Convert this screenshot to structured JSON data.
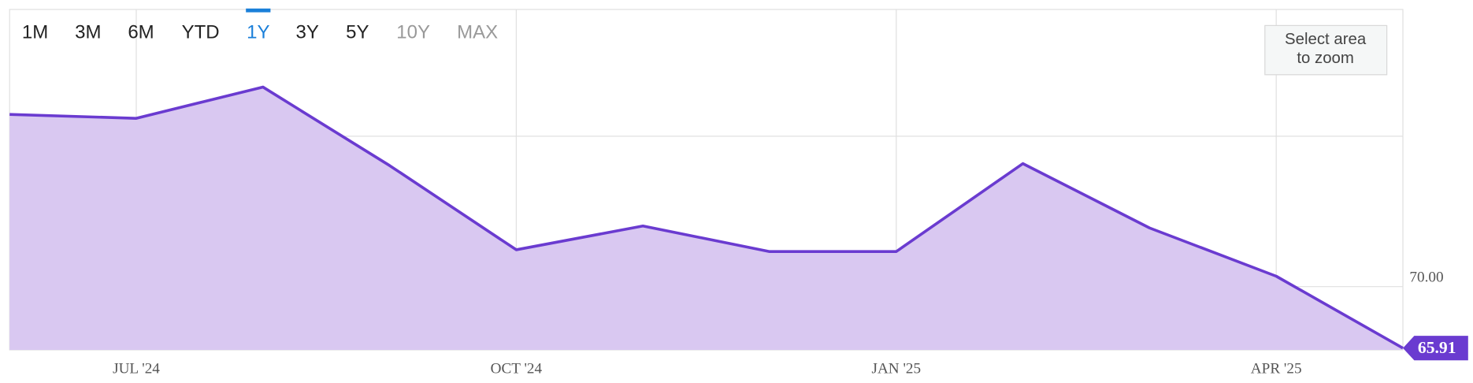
{
  "chart_data": {
    "type": "area",
    "range_buttons": [
      {
        "label": "1M",
        "state": "normal"
      },
      {
        "label": "3M",
        "state": "normal"
      },
      {
        "label": "6M",
        "state": "normal"
      },
      {
        "label": "YTD",
        "state": "normal"
      },
      {
        "label": "1Y",
        "state": "active"
      },
      {
        "label": "3Y",
        "state": "normal"
      },
      {
        "label": "5Y",
        "state": "normal"
      },
      {
        "label": "10Y",
        "state": "disabled"
      },
      {
        "label": "MAX",
        "state": "disabled"
      }
    ],
    "zoom_hint": [
      "Select area",
      "to zoom"
    ],
    "x": [
      "2024-06",
      "2024-07",
      "2024-08",
      "2024-09",
      "2024-10",
      "2024-11",
      "2024-12",
      "2025-01",
      "2025-02",
      "2025-03",
      "2025-04",
      "2025-05"
    ],
    "xlim": [
      "2024-06",
      "2025-05"
    ],
    "xticks": [
      {
        "value": "2024-07",
        "label": "JUL '24"
      },
      {
        "value": "2024-10",
        "label": "OCT '24"
      },
      {
        "value": "2025-01",
        "label": "JAN '25"
      },
      {
        "value": "2025-04",
        "label": "APR '25"
      }
    ],
    "series": [
      {
        "color": "#6a3bd0",
        "fill": "#d9c8f1",
        "values": [
          81.45,
          81.19,
          83.27,
          78.05,
          72.45,
          74.03,
          72.33,
          72.33,
          78.18,
          73.9,
          70.69,
          65.91
        ]
      }
    ],
    "ylim": [
      65.79,
      88.43
    ],
    "yticks": [
      {
        "value": 70,
        "label": "70.00"
      }
    ],
    "grid_lines": [
      70,
      80
    ],
    "grid": true
  }
}
